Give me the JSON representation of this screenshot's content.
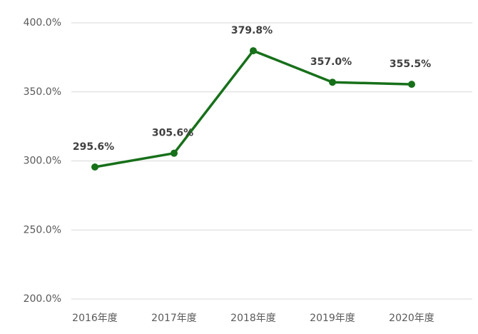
{
  "chart_data": {
    "type": "line",
    "categories": [
      "2016年度",
      "2017年度",
      "2018年度",
      "2019年度",
      "2020年度"
    ],
    "series": [
      {
        "color": "#17701a",
        "values": [
          295.6,
          305.6,
          379.8,
          357.0,
          355.5
        ],
        "value_labels": [
          "295.6%",
          "305.6%",
          "379.8%",
          "357.0%",
          "355.5%"
        ]
      }
    ],
    "ylim": [
      200,
      400
    ],
    "yticks": [
      {
        "value": 200,
        "label": "200.0%"
      },
      {
        "value": 250,
        "label": "250.0%"
      },
      {
        "value": 300,
        "label": "300.0%"
      },
      {
        "value": 350,
        "label": "350.0%"
      },
      {
        "value": 400,
        "label": "400.0%"
      }
    ],
    "grid": true
  }
}
